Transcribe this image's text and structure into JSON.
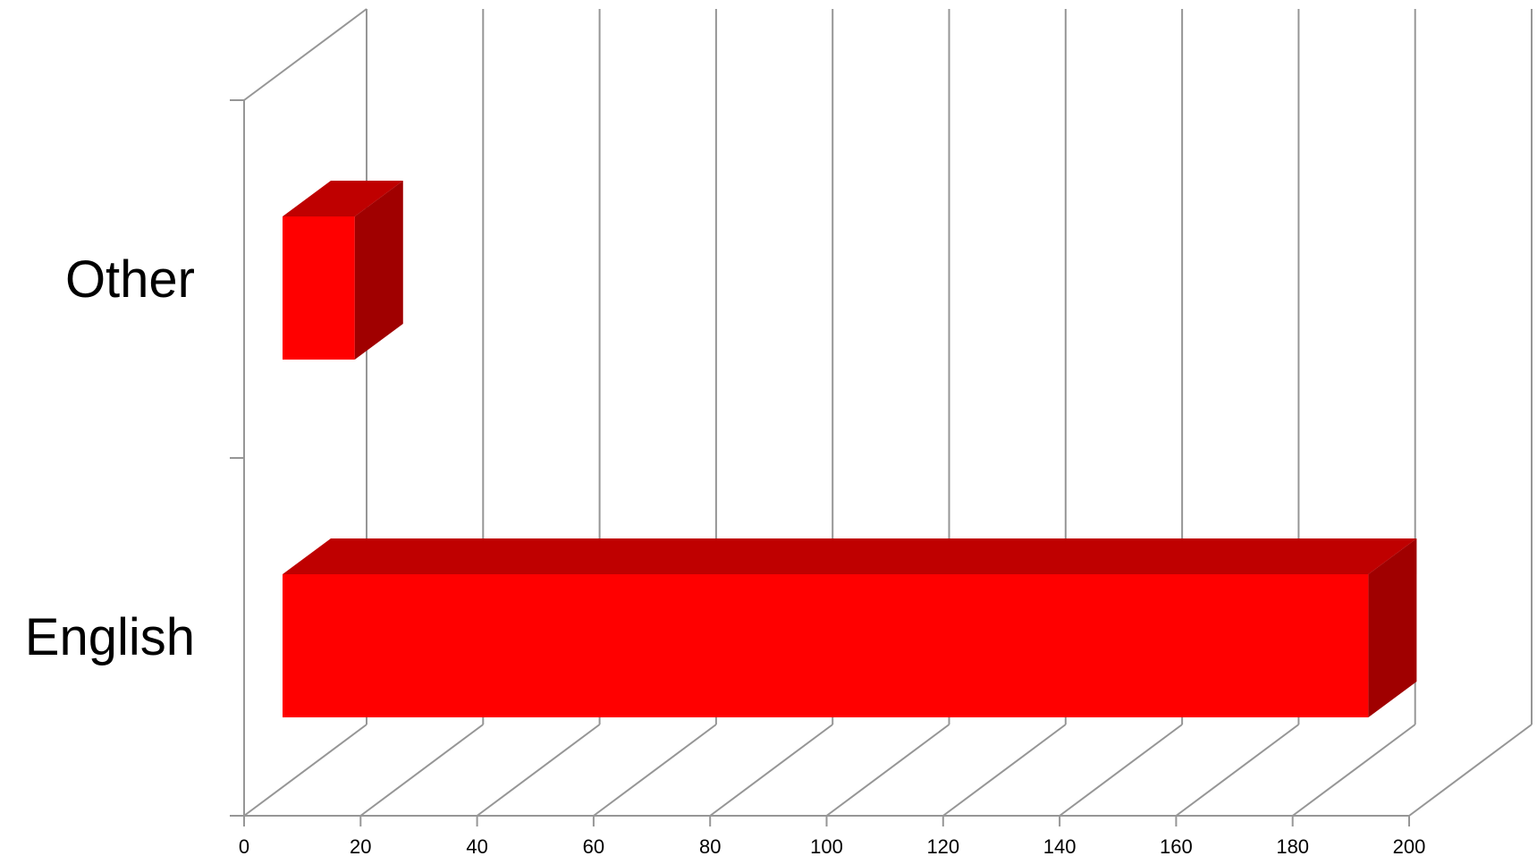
{
  "chart_data": {
    "type": "bar",
    "orientation": "horizontal",
    "style": "3d",
    "categories": [
      "Other",
      "English"
    ],
    "values": [
      19,
      193
    ],
    "xlim": [
      0,
      200
    ],
    "xticks": [
      0,
      20,
      40,
      60,
      80,
      100,
      120,
      140,
      160,
      180,
      200
    ],
    "title": "",
    "xlabel": "",
    "ylabel": "",
    "grid": true,
    "legend": "none"
  },
  "colors": {
    "bar_front": "#ff0000",
    "bar_top": "#bf0000",
    "bar_side": "#a00000",
    "gridline": "#969696"
  }
}
